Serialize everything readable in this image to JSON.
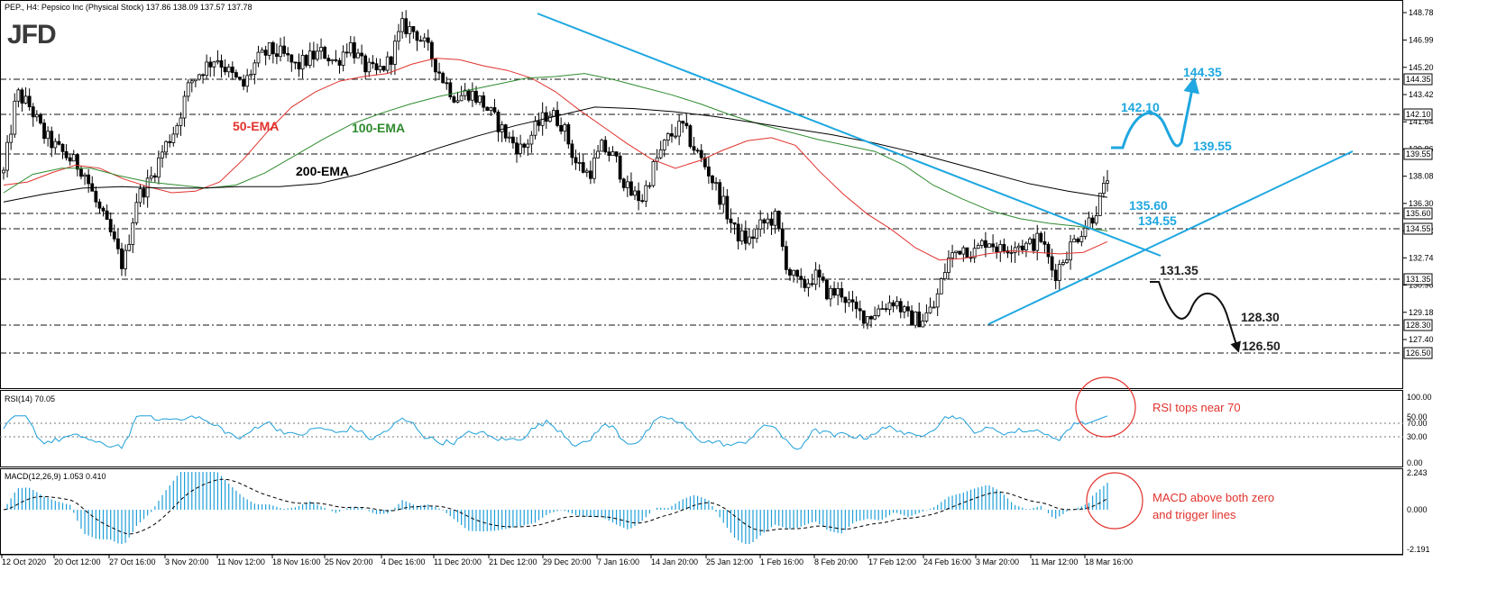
{
  "header": {
    "symbol_line": "PEP., H4:  Pepsico Inc (Physical Stock)  137.86 138.09 137.57 137.78",
    "logo": "JFD",
    "rsi_label": "RSI(14) 70.05",
    "macd_label": "MACD(12,26,9) 1.053 0.410"
  },
  "colors": {
    "candle": "#000000",
    "ema50": "#e1322d",
    "ema100": "#2e8b2e",
    "ema200": "#000000",
    "trendline": "#1ea7e0",
    "rsi_line": "#1e9fd8",
    "macd_hist": "#1e9fd8",
    "annotation_red": "#e1322d"
  },
  "chart_data": [
    {
      "type": "candlestick",
      "panel": "price",
      "ylim": [
        125.6,
        149.3
      ],
      "price_ticks": [
        "148.78",
        "146.99",
        "145.20",
        "143.42",
        "141.64",
        "139.86",
        "138.08",
        "136.30",
        "134.52",
        "132.74",
        "130.96",
        "129.18",
        "127.40"
      ],
      "level_labels": [
        "144.35",
        "142.10",
        "139.55",
        "135.60",
        "134.55",
        "131.35",
        "128.30",
        "126.50"
      ],
      "x_ticks": [
        "12 Oct 2020",
        "20 Oct 12:00",
        "27 Oct 16:00",
        "3 Nov 20:00",
        "11 Nov 12:00",
        "18 Nov 16:00",
        "25 Nov 20:00",
        "4 Dec 16:00",
        "11 Dec 20:00",
        "21 Dec 12:00",
        "29 Dec 20:00",
        "7 Jan 16:00",
        "14 Jan 20:00",
        "25 Jan 12:00",
        "1 Feb 16:00",
        "8 Feb 20:00",
        "17 Feb 12:00",
        "24 Feb 16:00",
        "3 Mar 20:00",
        "11 Mar 12:00",
        "18 Mar 16:00"
      ],
      "close_path": [
        138.3,
        143.5,
        142.6,
        140.8,
        139.9,
        139.2,
        138.5,
        136.2,
        134.4,
        132.1,
        136.6,
        137.8,
        139.8,
        141.4,
        144.2,
        145.1,
        145.9,
        144.8,
        143.9,
        145.6,
        146.3,
        146.0,
        145.2,
        145.8,
        146.2,
        145.5,
        146.8,
        145.3,
        144.8,
        145.6,
        147.9,
        147.5,
        146.2,
        144.5,
        143.2,
        143.6,
        142.9,
        141.7,
        140.5,
        139.8,
        141.2,
        142.3,
        141.5,
        139.0,
        138.2,
        140.0,
        139.2,
        137.0,
        136.6,
        139.0,
        140.6,
        141.4,
        139.8,
        138.4,
        136.5,
        134.4,
        133.8,
        134.9,
        135.4,
        131.9,
        130.8,
        131.6,
        130.4,
        130.5,
        129.2,
        128.9,
        129.5,
        130.0,
        128.8,
        128.7,
        129.6,
        132.6,
        133.5,
        133.1,
        134.0,
        133.2,
        133.7,
        133.5,
        134.0,
        131.6,
        133.2,
        134.5,
        135.6,
        137.8
      ],
      "emas": [
        {
          "name": "50-EMA",
          "values": [
            137.5,
            137.7,
            138.3,
            138.8,
            138.6,
            137.9,
            137.4,
            137.0,
            137.1,
            137.7,
            139.2,
            141.0,
            142.6,
            143.6,
            144.3,
            144.6,
            144.8,
            145.4,
            145.8,
            145.7,
            145.3,
            145.0,
            144.5,
            143.6,
            142.4,
            141.3,
            140.2,
            139.2,
            138.6,
            139.1,
            139.8,
            140.4,
            140.6,
            140.1,
            138.4,
            136.9,
            135.6,
            134.6,
            133.4,
            132.6,
            132.7,
            133.0,
            133.2,
            133.1,
            133.0,
            133.1,
            133.8
          ]
        },
        {
          "name": "100-EMA",
          "values": [
            137.0,
            138.2,
            138.6,
            138.6,
            138.1,
            137.7,
            137.5,
            137.3,
            137.5,
            138.3,
            139.4,
            140.5,
            141.5,
            142.2,
            142.8,
            143.3,
            143.7,
            144.1,
            144.5,
            144.6,
            144.8,
            144.4,
            143.9,
            143.4,
            142.8,
            142.1,
            141.5,
            141.0,
            140.5,
            140.1,
            139.7,
            138.8,
            137.5,
            136.6,
            135.8,
            135.3,
            135.0,
            134.8,
            134.5
          ]
        },
        {
          "name": "200-EMA",
          "values": [
            136.4,
            136.9,
            137.3,
            137.4,
            137.3,
            137.3,
            137.4,
            137.4,
            137.6,
            138.2,
            139.0,
            139.9,
            140.7,
            141.4,
            142.0,
            142.6,
            142.5,
            142.3,
            142.0,
            141.6,
            141.2,
            140.8,
            140.3,
            139.7,
            139.0,
            138.3,
            137.6,
            137.1,
            136.7
          ]
        }
      ],
      "ema_labels": [
        "50-EMA",
        "100-EMA",
        "200-EMA"
      ],
      "trendlines": [
        {
          "name": "downtrend",
          "from": [
            "29 Dec 20:00",
            148.78
          ],
          "to": [
            "18 Mar 16:00",
            132.74
          ]
        },
        {
          "name": "uptrend",
          "from": [
            "3 Mar 20:00",
            128.4
          ],
          "to": [
            "18 Mar 16:00",
            139.8
          ]
        }
      ],
      "scenario_up": [
        "139.55",
        "142.10",
        "139.55",
        "144.35"
      ],
      "scenario_down": [
        "131.35",
        "128.30",
        "126.50"
      ]
    },
    {
      "type": "line",
      "panel": "rsi",
      "ylim": [
        15,
        100
      ],
      "y_ticks": [
        "100.00",
        "70.00",
        "50.00",
        "30.00",
        "0.00"
      ],
      "annotation": "RSI tops near 70"
    },
    {
      "type": "bar",
      "panel": "macd",
      "ylim": [
        -2.191,
        2.243
      ],
      "y_ticks": [
        "2.243",
        "0.000",
        "-2.191"
      ],
      "annotation_line1": "MACD above both zero",
      "annotation_line2": "and trigger lines"
    }
  ]
}
